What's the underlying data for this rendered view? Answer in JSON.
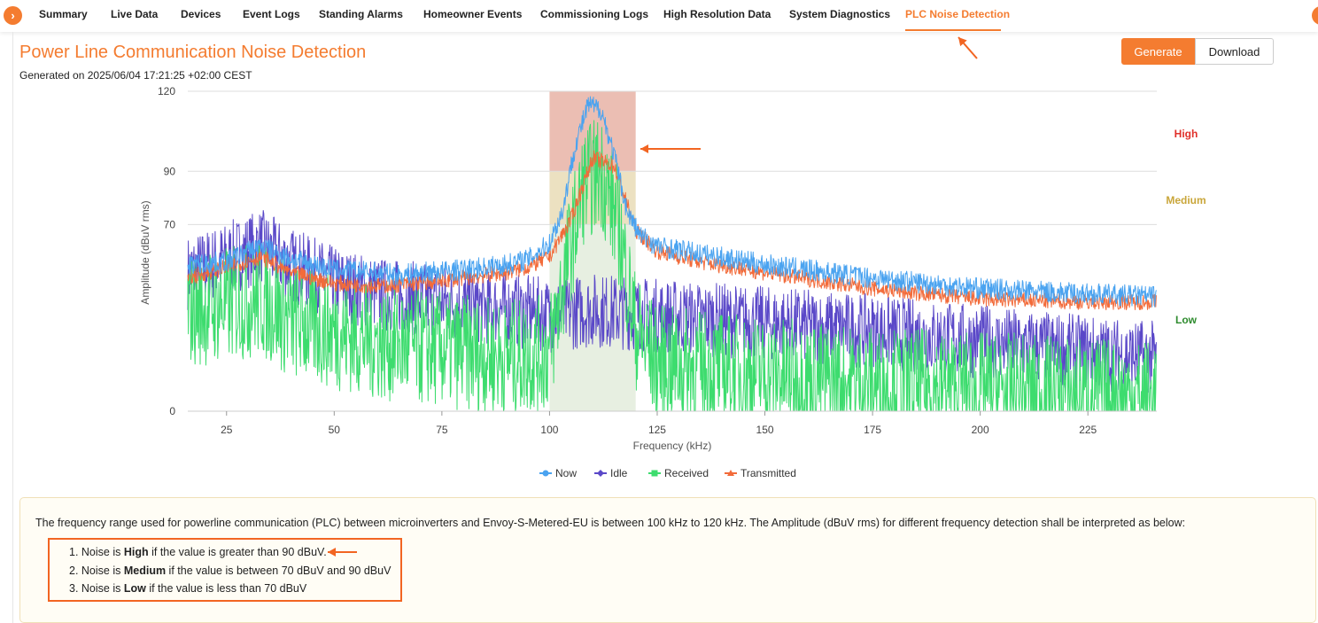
{
  "nav": {
    "toggle_icon": "chevron-right-icon",
    "tabs": [
      {
        "label": "Summary"
      },
      {
        "label": "Live Data"
      },
      {
        "label": "Devices"
      },
      {
        "label": "Event Logs"
      },
      {
        "label": "Standing Alarms"
      },
      {
        "label": "Homeowner Events"
      },
      {
        "label": "Commissioning Logs"
      },
      {
        "label": "High Resolution Data"
      },
      {
        "label": "System Diagnostics"
      },
      {
        "label": "PLC Noise Detection"
      }
    ],
    "active_tab": "PLC Noise Detection"
  },
  "page": {
    "title": "Power Line Communication Noise Detection",
    "generated": "Generated on 2025/06/04 17:21:25 +02:00 CEST"
  },
  "actions": {
    "generate_label": "Generate",
    "download_label": "Download"
  },
  "chart_data": {
    "type": "line",
    "xlabel": "Frequency (kHz)",
    "ylabel": "Amplitude (dBuV rms)",
    "xlim": [
      16,
      241
    ],
    "ylim": [
      0,
      120
    ],
    "x_ticks": [
      25,
      50,
      75,
      100,
      125,
      150,
      175,
      200,
      225
    ],
    "y_ticks": [
      0,
      70,
      90,
      120
    ],
    "grid": true,
    "legend_position": "bottom",
    "plc_band_khz": [
      100,
      120
    ],
    "zones": [
      {
        "label": "High",
        "from": 90,
        "to": 120,
        "color": "#e8b3a6",
        "label_color": "#e0302a"
      },
      {
        "label": "Medium",
        "from": 70,
        "to": 90,
        "color": "#e9dcb6",
        "label_color": "#c9a63a"
      },
      {
        "label": "Low",
        "from": 0,
        "to": 70,
        "color": "#e3ecdc",
        "label_color": "#2e8b2e"
      }
    ],
    "series": [
      {
        "name": "Now",
        "color": "#4aa3f0",
        "marker": "circle",
        "x": [
          16,
          25,
          30,
          33,
          40,
          50,
          60,
          65,
          70,
          80,
          90,
          95,
          100,
          103,
          106,
          109,
          112,
          115,
          118,
          121,
          125,
          135,
          150,
          175,
          200,
          225,
          241
        ],
        "y": [
          55,
          56,
          60,
          62,
          57,
          53,
          52,
          51,
          52,
          53,
          55,
          57,
          63,
          75,
          100,
          115,
          113,
          96,
          75,
          66,
          62,
          59,
          55,
          50,
          46,
          44,
          43
        ]
      },
      {
        "name": "Idle",
        "color": "#5a48c8",
        "marker": "diamond",
        "x": [
          16,
          25,
          33,
          40,
          50,
          60,
          70,
          80,
          90,
          100,
          110,
          125,
          150,
          175,
          200,
          225,
          241
        ],
        "y": [
          52,
          57,
          62,
          55,
          48,
          44,
          42,
          40,
          38,
          36,
          38,
          36,
          33,
          30,
          26,
          22,
          20
        ]
      },
      {
        "name": "Received",
        "color": "#3ddc6e",
        "marker": "square",
        "x": [
          16,
          25,
          33,
          40,
          50,
          60,
          70,
          80,
          90,
          100,
          104,
          108,
          112,
          116,
          120,
          125,
          150,
          175,
          200,
          225,
          241
        ],
        "y": [
          38,
          40,
          42,
          34,
          30,
          26,
          24,
          22,
          20,
          22,
          55,
          85,
          90,
          70,
          30,
          18,
          14,
          10,
          8,
          6,
          5
        ]
      },
      {
        "name": "Transmitted",
        "color": "#f26b3a",
        "marker": "triangle",
        "x": [
          16,
          25,
          33,
          40,
          50,
          60,
          70,
          80,
          90,
          95,
          100,
          105,
          110,
          115,
          120,
          125,
          135,
          150,
          175,
          200,
          225,
          241
        ],
        "y": [
          50,
          54,
          58,
          52,
          48,
          47,
          48,
          50,
          52,
          54,
          58,
          72,
          95,
          92,
          68,
          60,
          56,
          52,
          46,
          42,
          41,
          41
        ]
      }
    ]
  },
  "info": {
    "description": "The frequency range used for powerline communication (PLC) between microinverters and Envoy-S-Metered-EU is between 100 kHz to 120 kHz. The Amplitude (dBuV rms) for different frequency detection shall be interpreted as below:",
    "rules": [
      {
        "prefix": "1. Noise is ",
        "level": "High",
        "suffix": " if the value is greater than 90 dBuV."
      },
      {
        "prefix": "2. Noise is ",
        "level": "Medium",
        "suffix": " if the value is between 70 dBuV and 90 dBuV"
      },
      {
        "prefix": "3. Noise is ",
        "level": "Low",
        "suffix": " if the value is less than 70 dBuV"
      }
    ]
  },
  "annotations": {
    "arrow_color": "#f26522"
  }
}
